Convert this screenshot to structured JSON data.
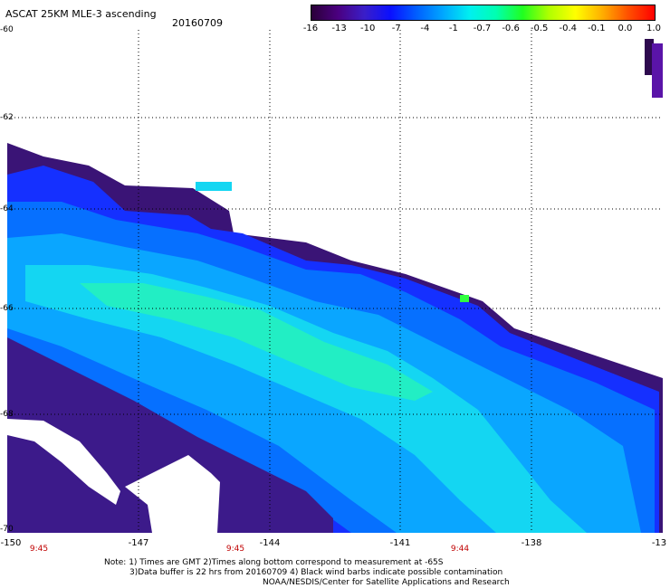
{
  "header": {
    "title": "ASCAT 25KM MLE-3 ascending",
    "date": "20160709"
  },
  "colorbar": {
    "labels": [
      "-16",
      "-13",
      "-10",
      "-7",
      "-4",
      "-1",
      "-0.7",
      "-0.6",
      "-0.5",
      "-0.4",
      "-0.1",
      "0.0",
      "1.0"
    ],
    "colors": [
      "#2a0038",
      "#4b0080",
      "#3a1ec8",
      "#0a10ff",
      "#0060ff",
      "#00a8ff",
      "#00f0f0",
      "#00ffb0",
      "#20ff20",
      "#b0ff00",
      "#ffff00",
      "#ffb000",
      "#ff5000",
      "#ff0000"
    ]
  },
  "axes": {
    "x_ticks": [
      "-150",
      "-147",
      "-144",
      "-141",
      "-138",
      "-13"
    ],
    "y_ticks": [
      "-60",
      "-62",
      "-64",
      "-66",
      "-68",
      "-70"
    ]
  },
  "time_labels": [
    "9:45",
    "9:45",
    "9:44"
  ],
  "notes": {
    "line1": "Note: 1) Times are GMT 2)Times along bottom correspond to measurement at -65S",
    "line2": "3)Data buffer is 22 hrs from 20160709 4) Black wind barbs indicate possible contamination",
    "line3": "NOAA/NESDIS/Center for Satellite Applications and Research"
  },
  "colors": {
    "dark_purple": "#2d0a4e",
    "purple": "#4a1890",
    "blue": "#1a2cff",
    "mid_blue": "#0a6cff",
    "light_blue": "#08a4ff",
    "cyan": "#10d8f0",
    "aqua": "#20f0c0",
    "green": "#30ff40"
  }
}
